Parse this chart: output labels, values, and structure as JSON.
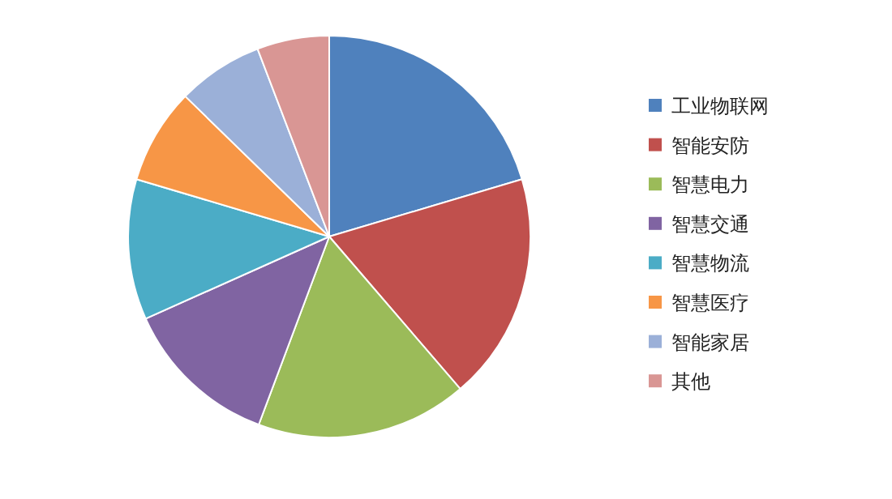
{
  "chart_data": {
    "type": "pie",
    "categories": [
      "工业物联网",
      "智能安防",
      "智慧电力",
      "智慧交通",
      "智慧物流",
      "智慧医疗",
      "智能家居",
      "其他"
    ],
    "values": [
      20.4,
      18.3,
      17.0,
      12.6,
      11.3,
      7.7,
      6.9,
      5.8
    ],
    "colors": [
      "#4f81bd",
      "#c0504d",
      "#9bbb59",
      "#8064a2",
      "#4bacc6",
      "#f79646",
      "#9bb0d8",
      "#d99694"
    ],
    "legend": "right"
  }
}
